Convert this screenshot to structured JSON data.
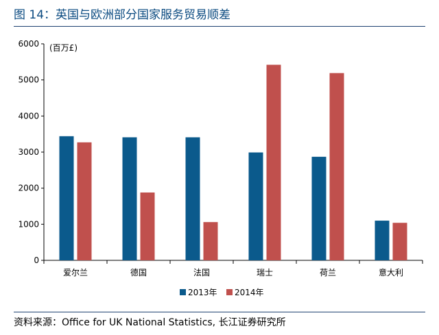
{
  "figure": {
    "title": "图 14：英国与欧洲部分国家服务贸易顺差",
    "source": "资料来源：Office for UK National Statistics, 长江证券研究所"
  },
  "chart_data": {
    "type": "bar",
    "unit_label": "(百万£)",
    "categories": [
      "爱尔兰",
      "德国",
      "法国",
      "瑞士",
      "荷兰",
      "意大利"
    ],
    "series": [
      {
        "name": "2013年",
        "color": "#0b5a8c",
        "values": [
          3440,
          3410,
          3410,
          2990,
          2870,
          1100
        ]
      },
      {
        "name": "2014年",
        "color": "#c0504d",
        "values": [
          3270,
          1880,
          1060,
          5420,
          5190,
          1040
        ]
      }
    ],
    "ylim": [
      0,
      6000
    ],
    "yticks": [
      "0",
      "1000",
      "2000",
      "3000",
      "4000",
      "5000",
      "6000"
    ],
    "legend_position": "bottom",
    "grid": false
  }
}
